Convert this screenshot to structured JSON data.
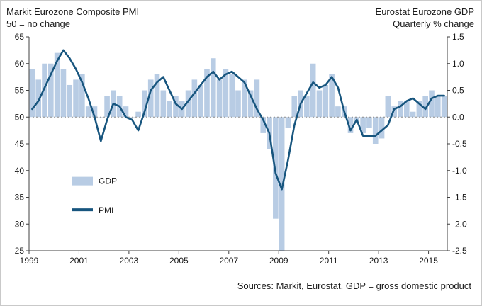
{
  "footer": {
    "source_note": "Sources: Markit, Eurostat. GDP = gross domestic product"
  },
  "chart_data": {
    "type": "bar+line combo, dual axis",
    "titles": {
      "left": [
        "Markit Eurozone Composite PMI",
        "50 = no change"
      ],
      "right": [
        "Eurostat Eurozone GDP",
        "Quarterly % change"
      ]
    },
    "categories": [
      "1999Q1",
      "1999Q2",
      "1999Q3",
      "1999Q4",
      "2000Q1",
      "2000Q2",
      "2000Q3",
      "2000Q4",
      "2001Q1",
      "2001Q2",
      "2001Q3",
      "2001Q4",
      "2002Q1",
      "2002Q2",
      "2002Q3",
      "2002Q4",
      "2003Q1",
      "2003Q2",
      "2003Q3",
      "2003Q4",
      "2004Q1",
      "2004Q2",
      "2004Q3",
      "2004Q4",
      "2005Q1",
      "2005Q2",
      "2005Q3",
      "2005Q4",
      "2006Q1",
      "2006Q2",
      "2006Q3",
      "2006Q4",
      "2007Q1",
      "2007Q2",
      "2007Q3",
      "2007Q4",
      "2008Q1",
      "2008Q2",
      "2008Q3",
      "2008Q4",
      "2009Q1",
      "2009Q2",
      "2009Q3",
      "2009Q4",
      "2010Q1",
      "2010Q2",
      "2010Q3",
      "2010Q4",
      "2011Q1",
      "2011Q2",
      "2011Q3",
      "2011Q4",
      "2012Q1",
      "2012Q2",
      "2012Q3",
      "2012Q4",
      "2013Q1",
      "2013Q2",
      "2013Q3",
      "2013Q4",
      "2014Q1",
      "2014Q2",
      "2014Q3",
      "2014Q4",
      "2015Q1",
      "2015Q2",
      "2015Q3"
    ],
    "series": [
      {
        "name": "GDP",
        "type": "bar",
        "axis": "right",
        "unit": "quarterly % change",
        "color": "#b8cce4",
        "values": [
          0.9,
          0.7,
          1.0,
          1.0,
          1.2,
          0.9,
          0.6,
          0.7,
          0.8,
          0.2,
          0.2,
          0.0,
          0.4,
          0.5,
          0.4,
          0.2,
          0.0,
          0.1,
          0.5,
          0.7,
          0.8,
          0.5,
          0.3,
          0.4,
          0.3,
          0.5,
          0.7,
          0.6,
          0.9,
          1.1,
          0.7,
          0.9,
          0.8,
          0.5,
          0.7,
          0.5,
          0.7,
          -0.3,
          -0.6,
          -1.9,
          -2.5,
          -0.2,
          0.4,
          0.5,
          0.4,
          1.0,
          0.5,
          0.6,
          0.8,
          0.2,
          0.2,
          -0.3,
          -0.1,
          -0.3,
          -0.2,
          -0.5,
          -0.4,
          0.4,
          0.2,
          0.3,
          0.3,
          0.1,
          0.3,
          0.4,
          0.5,
          0.4,
          0.4
        ]
      },
      {
        "name": "PMI",
        "type": "line",
        "axis": "left",
        "unit": "index, 50 = no change",
        "color": "#17557e",
        "values": [
          51.5,
          53.0,
          55.5,
          58.0,
          60.5,
          62.5,
          61.0,
          59.0,
          56.5,
          53.5,
          50.0,
          45.5,
          49.5,
          52.5,
          52.0,
          50.0,
          49.5,
          47.5,
          51.0,
          55.0,
          56.5,
          57.5,
          55.0,
          52.5,
          51.5,
          53.0,
          54.5,
          56.0,
          57.5,
          58.5,
          57.0,
          58.0,
          58.5,
          57.5,
          56.5,
          54.0,
          51.5,
          49.5,
          47.0,
          39.5,
          36.5,
          42.0,
          48.5,
          52.5,
          54.5,
          56.5,
          55.5,
          56.0,
          57.5,
          55.5,
          51.0,
          47.5,
          49.5,
          46.5,
          46.5,
          46.5,
          47.5,
          48.5,
          51.5,
          52.0,
          53.0,
          53.5,
          52.5,
          51.5,
          53.5,
          54.0,
          54.0
        ]
      }
    ],
    "axes": {
      "left_range": [
        25,
        65
      ],
      "left_ticks": [
        "65",
        "60",
        "55",
        "50",
        "45",
        "40",
        "35",
        "30",
        "25"
      ],
      "right_range": [
        -2.5,
        1.5
      ],
      "right_ticks": [
        "1.5",
        "1.0",
        "0.5",
        "0.0",
        "-0.5",
        "-1.0",
        "-1.5",
        "-2.0",
        "-2.5"
      ],
      "x_ticks": [
        "1999",
        "2001",
        "2003",
        "2005",
        "2007",
        "2009",
        "2011",
        "2013",
        "2015"
      ],
      "reference_line_left": 50,
      "grid": "single dotted horizontal reference line at PMI 50 / GDP 0.0"
    },
    "legend": [
      {
        "label": "GDP",
        "swatch": "bar"
      },
      {
        "label": "PMI",
        "swatch": "line"
      }
    ],
    "legend_position": "inside plot, lower left"
  }
}
